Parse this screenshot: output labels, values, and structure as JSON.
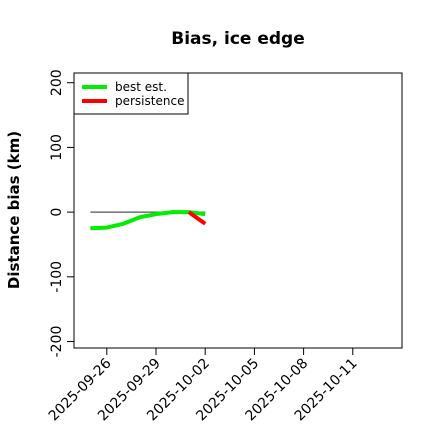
{
  "chart_data": {
    "type": "line",
    "title": "Bias, ice edge",
    "xlabel": "",
    "ylabel": "Distance bias (km)",
    "xlim": [
      "2025-09-24",
      "2025-10-14"
    ],
    "ylim": [
      -210,
      215
    ],
    "yticks": [
      -200,
      -100,
      0,
      100,
      200
    ],
    "xticks": [
      "2025-09-26",
      "2025-09-29",
      "2025-10-02",
      "2025-10-05",
      "2025-10-08",
      "2025-10-11"
    ],
    "grid": false,
    "legend_position": "top-left",
    "reference_line": {
      "y": 0,
      "from": "2025-09-25",
      "to": "2025-10-02",
      "color": "#555555"
    },
    "series": [
      {
        "name": "best est.",
        "color": "#00ee00",
        "x": [
          "2025-09-25",
          "2025-09-26",
          "2025-09-27",
          "2025-09-28",
          "2025-09-29",
          "2025-09-30",
          "2025-10-01",
          "2025-10-02"
        ],
        "y": [
          -25,
          -24,
          -18,
          -8,
          -3,
          0,
          0,
          -3
        ]
      },
      {
        "name": "persistence",
        "color": "#ff0000",
        "x": [
          "2025-10-01",
          "2025-10-02"
        ],
        "y": [
          0,
          -18
        ]
      }
    ]
  }
}
